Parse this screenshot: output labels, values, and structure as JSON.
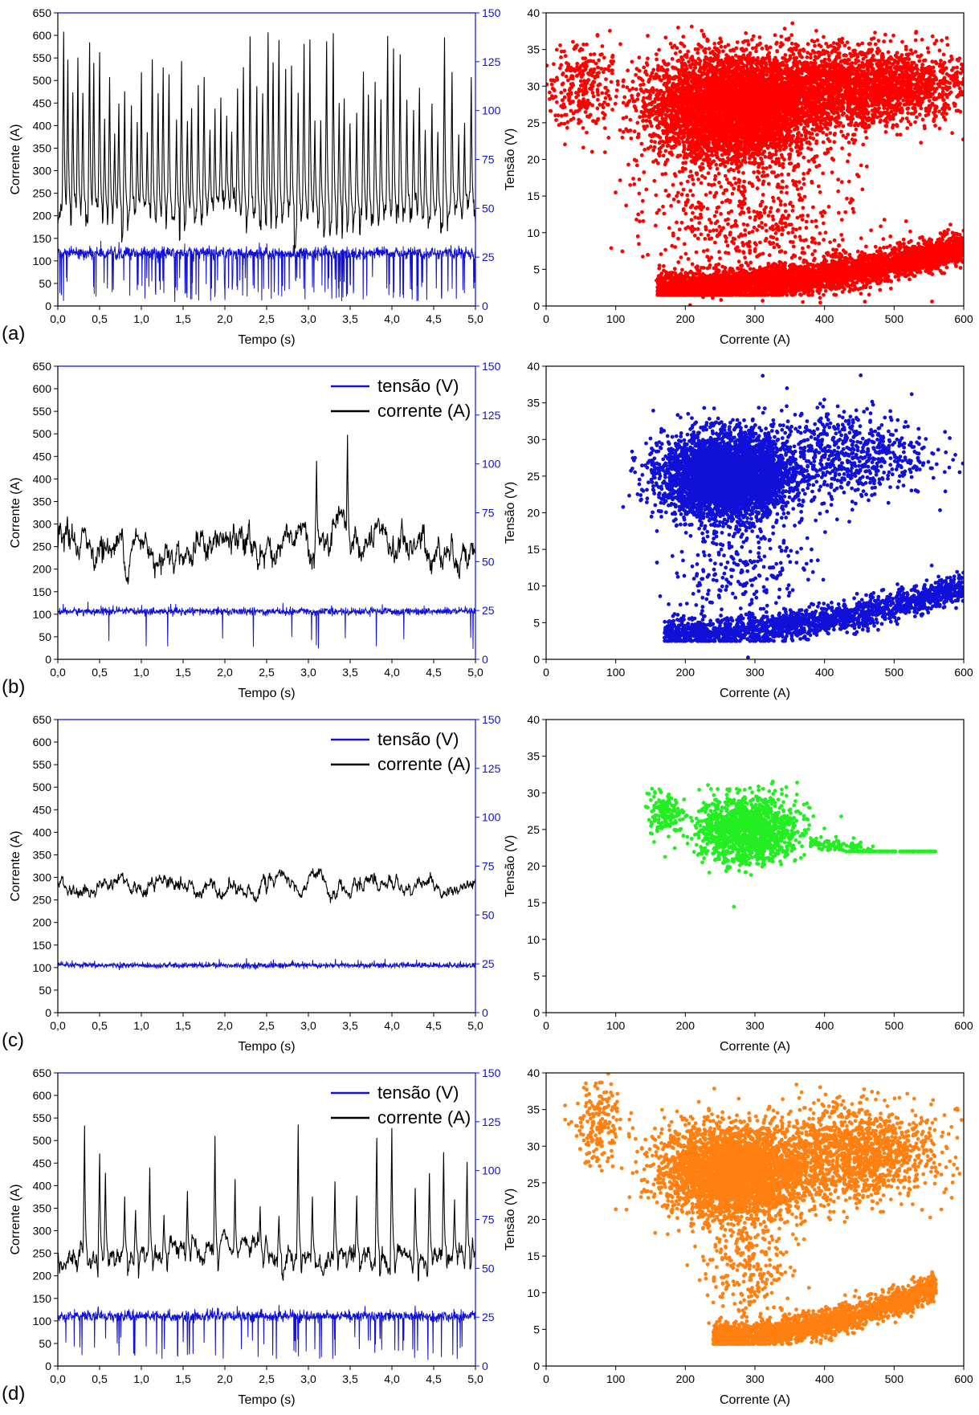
{
  "colors": {
    "current": "#000000",
    "voltage": "#1010d8",
    "scatter_a": "#ff0000",
    "scatter_b": "#1010d8",
    "scatter_c": "#22ee22",
    "scatter_d": "#ff8010"
  },
  "chart_data": [
    {
      "id": "a-time",
      "type": "line",
      "panel_label": "(a)",
      "xlabel": "Tempo (s)",
      "ylabel": "Corrente (A)",
      "xlim": [
        0,
        5
      ],
      "ylim": [
        0,
        650
      ],
      "y2lim": [
        0,
        150
      ],
      "x_ticks": [
        "0,0",
        "0,5",
        "1,0",
        "1,5",
        "2,0",
        "2,5",
        "3,0",
        "3,5",
        "4,0",
        "4,5",
        "5,0"
      ],
      "y_ticks": [
        "0",
        "50",
        "100",
        "150",
        "200",
        "250",
        "300",
        "350",
        "400",
        "450",
        "500",
        "550",
        "600",
        "650"
      ],
      "y2_ticks": [
        "0",
        "25",
        "50",
        "75",
        "100",
        "125",
        "150"
      ],
      "legend": null,
      "series": [
        {
          "axis": "left",
          "color": "#000000",
          "baseline": 210,
          "noise": 25,
          "spikes": [
            0.07,
            0.12,
            0.18,
            0.24,
            0.3,
            0.38,
            0.43,
            0.5,
            0.56,
            0.62,
            0.68,
            0.73,
            0.8,
            0.88,
            0.95,
            1.0,
            1.07,
            1.13,
            1.2,
            1.26,
            1.33,
            1.42,
            1.48,
            1.55,
            1.6,
            1.68,
            1.75,
            1.82,
            1.88,
            1.95,
            2.02,
            2.08,
            2.15,
            2.22,
            2.3,
            2.38,
            2.45,
            2.52,
            2.58,
            2.65,
            2.73,
            2.8,
            2.88,
            2.95,
            3.02,
            3.08,
            3.15,
            3.22,
            3.3,
            3.37,
            3.43,
            3.5,
            3.58,
            3.66,
            3.72,
            3.8,
            3.87,
            3.95,
            4.02,
            4.1,
            4.18,
            4.26,
            4.33,
            4.4,
            4.48,
            4.55,
            4.63,
            4.72,
            4.8,
            4.87,
            4.95
          ],
          "spike_min": 380,
          "spike_max": 610
        },
        {
          "axis": "right",
          "color": "#1010d8",
          "baseline": 27,
          "noise": 2.5,
          "drops": 150,
          "drop_min": 2,
          "drop_max": 15
        }
      ]
    },
    {
      "id": "a-scatter",
      "type": "scatter",
      "xlabel": "Corrente (A)",
      "ylabel": "Tensão (V)",
      "xlim": [
        0,
        600
      ],
      "ylim": [
        0,
        40
      ],
      "x_ticks": [
        "0",
        "100",
        "200",
        "300",
        "400",
        "500",
        "600"
      ],
      "y_ticks": [
        "0",
        "5",
        "10",
        "15",
        "20",
        "25",
        "30",
        "35",
        "40"
      ],
      "color": "#ff0000",
      "clusters": [
        {
          "cx": 270,
          "cy": 27,
          "sx": 60,
          "sy": 3.5,
          "n": 5000
        },
        {
          "cx": 450,
          "cy": 30,
          "sx": 80,
          "sy": 2.5,
          "n": 2500
        },
        {
          "cx": 50,
          "cy": 30,
          "sx": 30,
          "sy": 3,
          "n": 300
        },
        {
          "band": true,
          "x0": 160,
          "x1": 600,
          "y0": 2.5,
          "y1": 8,
          "spread": 1.8,
          "n": 4000
        },
        {
          "cx": 300,
          "cy": 12,
          "sx": 80,
          "sy": 5,
          "n": 600
        }
      ]
    },
    {
      "id": "b-time",
      "type": "line",
      "panel_label": "(b)",
      "xlabel": "Tempo (s)",
      "ylabel": "Corrente (A)",
      "xlim": [
        0,
        5
      ],
      "ylim": [
        0,
        650
      ],
      "y2lim": [
        0,
        150
      ],
      "x_ticks": [
        "0,0",
        "0,5",
        "1,0",
        "1,5",
        "2,0",
        "2,5",
        "3,0",
        "3,5",
        "4,0",
        "4,5",
        "5,0"
      ],
      "y_ticks": [
        "0",
        "50",
        "100",
        "150",
        "200",
        "250",
        "300",
        "350",
        "400",
        "450",
        "500",
        "550",
        "600",
        "650"
      ],
      "y2_ticks": [
        "0",
        "25",
        "50",
        "75",
        "100",
        "125",
        "150"
      ],
      "legend": [
        "tensão (V)",
        "corrente (A)"
      ],
      "series": [
        {
          "axis": "left",
          "color": "#000000",
          "baseline": 250,
          "noise": 30,
          "spikes": [
            3.1,
            3.47
          ],
          "spike_values": [
            440,
            498
          ]
        },
        {
          "axis": "right",
          "color": "#1010d8",
          "baseline": 24.5,
          "noise": 1.6,
          "drops": 14,
          "drop_min": 4,
          "drop_max": 12
        }
      ]
    },
    {
      "id": "b-scatter",
      "type": "scatter",
      "xlabel": "Corrente (A)",
      "ylabel": "Tensão (V)",
      "xlim": [
        0,
        600
      ],
      "ylim": [
        0,
        40
      ],
      "x_ticks": [
        "0",
        "100",
        "200",
        "300",
        "400",
        "500",
        "600"
      ],
      "y_ticks": [
        "0",
        "5",
        "10",
        "15",
        "20",
        "25",
        "30",
        "35",
        "40"
      ],
      "color": "#1010d8",
      "clusters": [
        {
          "cx": 260,
          "cy": 25,
          "sx": 45,
          "sy": 2.8,
          "n": 4500
        },
        {
          "cx": 430,
          "cy": 28,
          "sx": 60,
          "sy": 3,
          "n": 700
        },
        {
          "band": true,
          "x0": 170,
          "x1": 600,
          "y0": 3.5,
          "y1": 10,
          "spread": 1.6,
          "n": 1800
        },
        {
          "cx": 280,
          "cy": 12,
          "sx": 50,
          "sy": 4,
          "n": 250
        }
      ]
    },
    {
      "id": "c-time",
      "type": "line",
      "panel_label": "(c)",
      "xlabel": "Tempo (s)",
      "ylabel": "Corrente (A)",
      "xlim": [
        0,
        5
      ],
      "ylim": [
        0,
        650
      ],
      "y2lim": [
        0,
        150
      ],
      "x_ticks": [
        "0,0",
        "0,5",
        "1,0",
        "1,5",
        "2,0",
        "2,5",
        "3,0",
        "3,5",
        "4,0",
        "4,5",
        "5,0"
      ],
      "y_ticks": [
        "0",
        "50",
        "100",
        "150",
        "200",
        "250",
        "300",
        "350",
        "400",
        "450",
        "500",
        "550",
        "600",
        "650"
      ],
      "y2_ticks": [
        "0",
        "25",
        "50",
        "75",
        "100",
        "125",
        "150"
      ],
      "legend": [
        "tensão (V)",
        "corrente (A)"
      ],
      "series": [
        {
          "axis": "left",
          "color": "#000000",
          "baseline": 282,
          "noise": 14,
          "spikes": [],
          "spike_values": []
        },
        {
          "axis": "right",
          "color": "#1010d8",
          "baseline": 24.2,
          "noise": 1.2,
          "drops": 0,
          "drop_min": 0,
          "drop_max": 0
        }
      ]
    },
    {
      "id": "c-scatter",
      "type": "scatter",
      "xlabel": "Corrente (A)",
      "ylabel": "Tensão (V)",
      "xlim": [
        0,
        600
      ],
      "ylim": [
        0,
        40
      ],
      "x_ticks": [
        "0",
        "100",
        "200",
        "300",
        "400",
        "500",
        "600"
      ],
      "y_ticks": [
        "0",
        "5",
        "10",
        "15",
        "20",
        "25",
        "30",
        "35",
        "40"
      ],
      "color": "#22ee22",
      "clusters": [
        {
          "cx": 290,
          "cy": 25,
          "sx": 35,
          "sy": 2.2,
          "n": 1400
        },
        {
          "cx": 170,
          "cy": 27,
          "sx": 12,
          "sy": 1.5,
          "n": 150
        },
        {
          "band": true,
          "x0": 380,
          "x1": 560,
          "y0": 23,
          "y1": 17,
          "spread": 0.8,
          "n": 200
        }
      ]
    },
    {
      "id": "d-time",
      "type": "line",
      "panel_label": "(d)",
      "xlabel": "Tempo (s)",
      "ylabel": "Corrente (A)",
      "xlim": [
        0,
        5
      ],
      "ylim": [
        0,
        650
      ],
      "y2lim": [
        0,
        150
      ],
      "x_ticks": [
        "0,0",
        "0,5",
        "1,0",
        "1,5",
        "2,0",
        "2,5",
        "3,0",
        "3,5",
        "4,0",
        "4,5",
        "5,0"
      ],
      "y_ticks": [
        "0",
        "50",
        "100",
        "150",
        "200",
        "250",
        "300",
        "350",
        "400",
        "450",
        "500",
        "550",
        "600",
        "650"
      ],
      "y2_ticks": [
        "0",
        "25",
        "50",
        "75",
        "100",
        "125",
        "150"
      ],
      "legend": [
        "tensão (V)",
        "corrente (A)"
      ],
      "series": [
        {
          "axis": "left",
          "color": "#000000",
          "baseline": 245,
          "noise": 22,
          "spikes": [
            0.32,
            0.5,
            0.57,
            0.8,
            0.93,
            1.1,
            1.27,
            1.55,
            1.88,
            2.12,
            2.42,
            2.65,
            2.88,
            3.05,
            3.32,
            3.58,
            3.82,
            4.0,
            4.28,
            4.45,
            4.62,
            4.75,
            4.9
          ],
          "spike_min": 330,
          "spike_max": 540
        },
        {
          "axis": "right",
          "color": "#1010d8",
          "baseline": 25.5,
          "noise": 2.2,
          "drops": 70,
          "drop_min": 3,
          "drop_max": 15
        }
      ]
    },
    {
      "id": "d-scatter",
      "type": "scatter",
      "xlabel": "Corrente (A)",
      "ylabel": "Tensão (V)",
      "xlim": [
        0,
        600
      ],
      "ylim": [
        0,
        40
      ],
      "x_ticks": [
        "0",
        "100",
        "200",
        "300",
        "400",
        "500",
        "600"
      ],
      "y_ticks": [
        "0",
        "5",
        "10",
        "15",
        "20",
        "25",
        "30",
        "35",
        "40"
      ],
      "color": "#ff8010",
      "clusters": [
        {
          "cx": 270,
          "cy": 26.5,
          "sx": 50,
          "sy": 3,
          "n": 3500
        },
        {
          "cx": 440,
          "cy": 29,
          "sx": 60,
          "sy": 3,
          "n": 1500
        },
        {
          "cx": 75,
          "cy": 33,
          "sx": 18,
          "sy": 3,
          "n": 200
        },
        {
          "band": true,
          "x0": 240,
          "x1": 560,
          "y0": 4,
          "y1": 11,
          "spread": 1.5,
          "n": 2200
        },
        {
          "cx": 290,
          "cy": 14,
          "sx": 30,
          "sy": 4,
          "n": 300
        }
      ]
    }
  ]
}
